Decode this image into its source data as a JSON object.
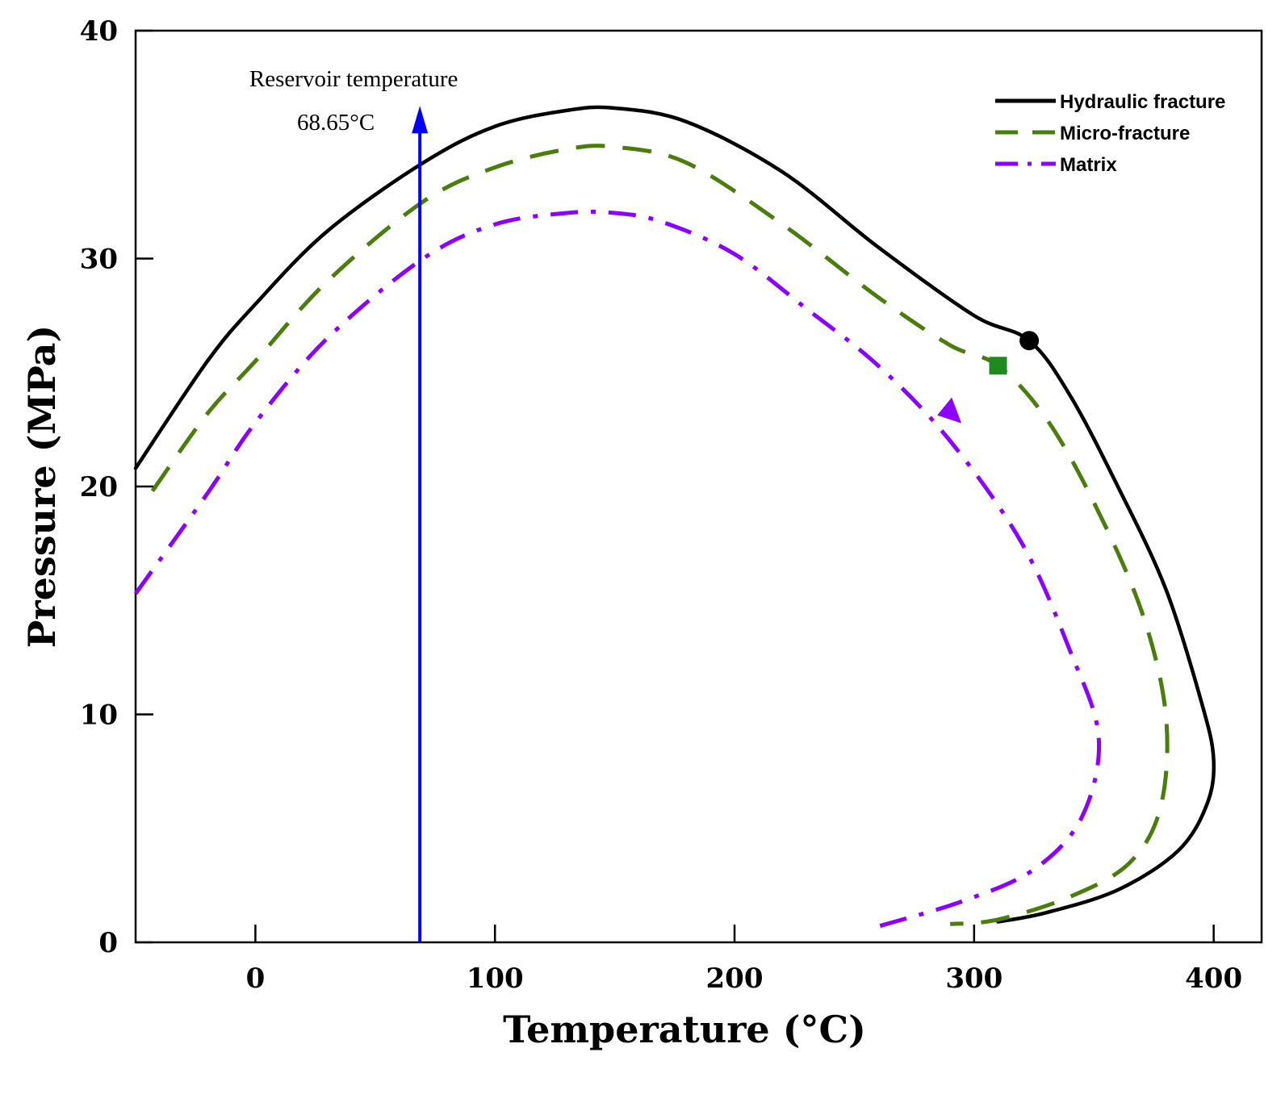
{
  "chart_data": {
    "type": "line",
    "title": "",
    "xlabel": "Temperature (°C)",
    "ylabel": "Pressure (MPa)",
    "xlim": [
      -50,
      420
    ],
    "ylim": [
      0,
      40
    ],
    "x_ticks": [
      0,
      100,
      200,
      300,
      400
    ],
    "y_ticks": [
      0,
      10,
      20,
      30,
      40
    ],
    "x_tick_labels": [
      "0",
      "100",
      "200",
      "300",
      "400"
    ],
    "y_tick_labels": [
      "0",
      "10",
      "20",
      "30",
      "40"
    ],
    "legend_position": "top-right",
    "series": [
      {
        "name": "Hydraulic fracture",
        "style": "solid",
        "color": "#000000",
        "points": [
          [
            -50,
            20.8
          ],
          [
            -20,
            25.5
          ],
          [
            0,
            28
          ],
          [
            30,
            31.2
          ],
          [
            70,
            34.2
          ],
          [
            100,
            35.8
          ],
          [
            130,
            36.5
          ],
          [
            150,
            36.6
          ],
          [
            180,
            36
          ],
          [
            220,
            33.8
          ],
          [
            260,
            30.5
          ],
          [
            300,
            27.5
          ],
          [
            323,
            26.4
          ],
          [
            340,
            24
          ],
          [
            360,
            20
          ],
          [
            380,
            15.5
          ],
          [
            395,
            10.5
          ],
          [
            400,
            8
          ],
          [
            397,
            6
          ],
          [
            385,
            4
          ],
          [
            360,
            2.3
          ],
          [
            330,
            1.3
          ],
          [
            310,
            0.9
          ]
        ],
        "critical_point": {
          "x": 323,
          "y": 26.4,
          "marker": "circle",
          "color": "#000000"
        }
      },
      {
        "name": "Micro-fracture",
        "style": "dashed",
        "color": "#4a7d0b",
        "points": [
          [
            -43,
            19.8
          ],
          [
            -20,
            23.2
          ],
          [
            0,
            25.5
          ],
          [
            30,
            29
          ],
          [
            70,
            32.5
          ],
          [
            100,
            34
          ],
          [
            130,
            34.8
          ],
          [
            150,
            34.9
          ],
          [
            180,
            34.2
          ],
          [
            220,
            31.5
          ],
          [
            260,
            28.3
          ],
          [
            290,
            26.2
          ],
          [
            310,
            25.3
          ],
          [
            330,
            23
          ],
          [
            350,
            19.3
          ],
          [
            370,
            14.5
          ],
          [
            380,
            10
          ],
          [
            378,
            6
          ],
          [
            365,
            3.5
          ],
          [
            340,
            2
          ],
          [
            310,
            1
          ],
          [
            290,
            0.8
          ]
        ],
        "critical_point": {
          "x": 310,
          "y": 25.3,
          "marker": "square",
          "color": "#1f8a1f"
        }
      },
      {
        "name": "Matrix",
        "style": "dashdot",
        "color": "#8b00ff",
        "points": [
          [
            -50,
            15.3
          ],
          [
            -20,
            19.7
          ],
          [
            0,
            22.8
          ],
          [
            30,
            26.5
          ],
          [
            70,
            30
          ],
          [
            100,
            31.5
          ],
          [
            130,
            32
          ],
          [
            150,
            32
          ],
          [
            170,
            31.6
          ],
          [
            200,
            30.2
          ],
          [
            230,
            27.8
          ],
          [
            260,
            25.3
          ],
          [
            290,
            22
          ],
          [
            320,
            17.5
          ],
          [
            340,
            12.8
          ],
          [
            352,
            9
          ],
          [
            345,
            5.5
          ],
          [
            325,
            3.2
          ],
          [
            295,
            1.8
          ],
          [
            260,
            0.7
          ]
        ],
        "arrow_point": {
          "x": 290,
          "y": 23.2
        }
      }
    ],
    "annotations": [
      {
        "type": "vertical-arrow",
        "x": 68.65,
        "y_from": 0,
        "y_to": 36.7,
        "color": "#0000ff",
        "label_line1": "Reservoir temperature",
        "label_line2": "68.65°C"
      }
    ]
  }
}
